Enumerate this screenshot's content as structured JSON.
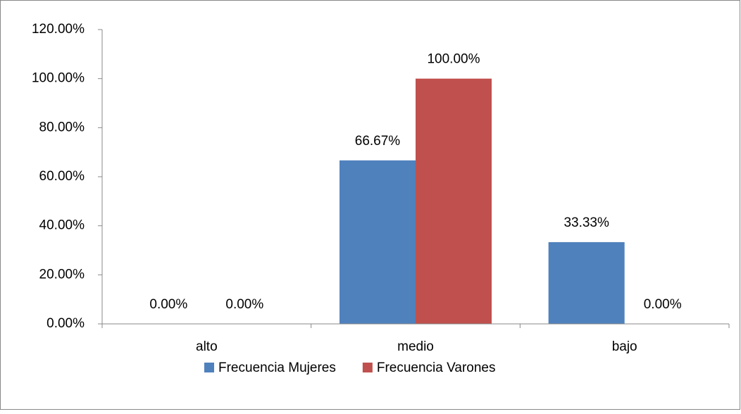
{
  "chart_data": {
    "type": "bar",
    "categories": [
      "alto",
      "medio",
      "bajo"
    ],
    "series": [
      {
        "name": "Frecuencia Mujeres",
        "color": "#4f81bd",
        "values": [
          0,
          66.67,
          33.33
        ],
        "value_labels": [
          "0.00%",
          "66.67%",
          "33.33%"
        ]
      },
      {
        "name": "Frecuencia Varones",
        "color": "#c0504d",
        "values": [
          0,
          100,
          0
        ],
        "value_labels": [
          "0.00%",
          "100.00%",
          "0.00%"
        ]
      }
    ],
    "ylim": [
      0,
      120
    ],
    "yticks": [
      {
        "value": 0,
        "label": "0.00%"
      },
      {
        "value": 20,
        "label": "20.00%"
      },
      {
        "value": 40,
        "label": "40.00%"
      },
      {
        "value": 60,
        "label": "60.00%"
      },
      {
        "value": 80,
        "label": "80.00%"
      },
      {
        "value": 100,
        "label": "100.00%"
      },
      {
        "value": 120,
        "label": "120.00%"
      }
    ],
    "grid": false,
    "legend": "bottom"
  }
}
